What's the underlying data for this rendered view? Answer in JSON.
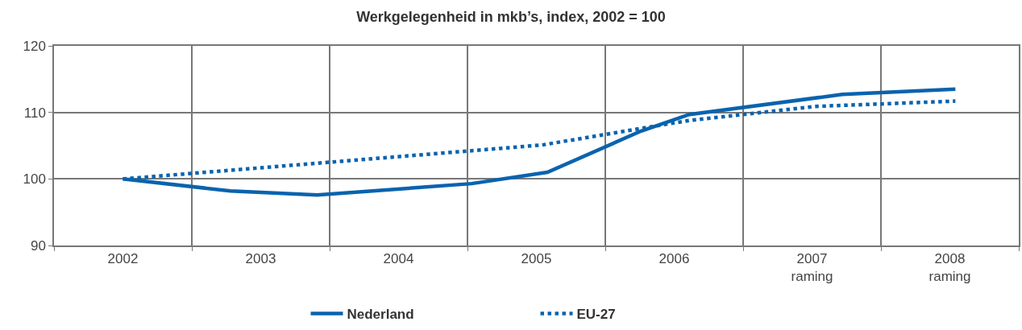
{
  "chart_data": {
    "type": "line",
    "title": "Werkgelegenheid in mkb’s, index, 2002 = 100",
    "series": [
      {
        "name": "Nederland",
        "color": "#0a63ae",
        "line_style": "solid",
        "x": [
          2002.0,
          2002.78,
          2003.41,
          2004.53,
          2005.08,
          2005.76,
          2006.11,
          2007.22,
          2008.04
        ],
        "values": [
          100.0,
          98.2,
          97.6,
          99.3,
          101.0,
          107.2,
          109.7,
          112.7,
          113.5
        ]
      },
      {
        "name": "EU-27",
        "color": "#0a63ae",
        "line_style": "dotted",
        "x": [
          2002.0,
          2005.04,
          2006.11,
          2007.02,
          2008.04
        ],
        "values": [
          100.0,
          105.1,
          108.8,
          110.9,
          111.7
        ]
      }
    ],
    "xlim": [
      2001.5,
      2008.5
    ],
    "xticks": [
      {
        "value": 2001.5,
        "label": null
      },
      {
        "value": 2002,
        "label": "2002"
      },
      {
        "value": 2002.5,
        "label": null
      },
      {
        "value": 2003,
        "label": "2003"
      },
      {
        "value": 2003.5,
        "label": null
      },
      {
        "value": 2004,
        "label": "2004"
      },
      {
        "value": 2004.5,
        "label": null
      },
      {
        "value": 2005,
        "label": "2005"
      },
      {
        "value": 2005.5,
        "label": null
      },
      {
        "value": 2006,
        "label": "2006"
      },
      {
        "value": 2006.5,
        "label": null
      },
      {
        "value": 2007,
        "label": "2007\nraming"
      },
      {
        "value": 2007.5,
        "label": null
      },
      {
        "value": 2008,
        "label": "2008\nraming"
      },
      {
        "value": 2008.5,
        "label": null
      }
    ],
    "ylim": [
      90,
      120
    ],
    "yticks": [
      90,
      100,
      110,
      120
    ],
    "grid": true,
    "legend": "bottom",
    "marker": "none"
  }
}
